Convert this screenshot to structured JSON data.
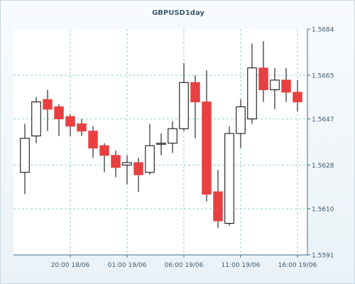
{
  "chart_data": {
    "type": "candlestick",
    "title": "GBPUSD1day",
    "xlabel": "",
    "ylabel": "",
    "ylim": [
      1.5591,
      1.5684
    ],
    "y_ticks": [
      "1.5591",
      "1.5610",
      "1.5628",
      "1.5647",
      "1.5665",
      "1.5684"
    ],
    "x_tick_labels": [
      {
        "label": "20:00 18/06",
        "index": 4
      },
      {
        "label": "01:00 19/06",
        "index": 9
      },
      {
        "label": "06:00 19/06",
        "index": 14
      },
      {
        "label": "11:00 19/06",
        "index": 19
      },
      {
        "label": "16:00 19/06",
        "index": 24
      }
    ],
    "grid": true,
    "colors": {
      "up_fill": "#ffffff",
      "down_fill": "#e84040",
      "grid": "#8ed0d0",
      "axis": "#3a6f8f",
      "label": "#3f5a72"
    },
    "candles": [
      {
        "open": 1.5625,
        "high": 1.5645,
        "low": 1.5616,
        "close": 1.5639
      },
      {
        "open": 1.564,
        "high": 1.5656,
        "low": 1.5637,
        "close": 1.5654
      },
      {
        "open": 1.5655,
        "high": 1.5659,
        "low": 1.5642,
        "close": 1.5651
      },
      {
        "open": 1.5652,
        "high": 1.5653,
        "low": 1.564,
        "close": 1.5647
      },
      {
        "open": 1.5648,
        "high": 1.5649,
        "low": 1.564,
        "close": 1.5644
      },
      {
        "open": 1.5645,
        "high": 1.5647,
        "low": 1.564,
        "close": 1.5642
      },
      {
        "open": 1.5642,
        "high": 1.5644,
        "low": 1.5631,
        "close": 1.5635
      },
      {
        "open": 1.5636,
        "high": 1.5637,
        "low": 1.5625,
        "close": 1.5632
      },
      {
        "open": 1.5632,
        "high": 1.5634,
        "low": 1.5623,
        "close": 1.5627
      },
      {
        "open": 1.5628,
        "high": 1.5632,
        "low": 1.562,
        "close": 1.5629
      },
      {
        "open": 1.5629,
        "high": 1.5631,
        "low": 1.5617,
        "close": 1.5624
      },
      {
        "open": 1.5625,
        "high": 1.5645,
        "low": 1.5624,
        "close": 1.5636
      },
      {
        "open": 1.5637,
        "high": 1.5641,
        "low": 1.5632,
        "close": 1.5637
      },
      {
        "open": 1.5637,
        "high": 1.5646,
        "low": 1.5633,
        "close": 1.5643
      },
      {
        "open": 1.5643,
        "high": 1.567,
        "low": 1.5642,
        "close": 1.5662
      },
      {
        "open": 1.5662,
        "high": 1.5665,
        "low": 1.5639,
        "close": 1.5654
      },
      {
        "open": 1.5654,
        "high": 1.5667,
        "low": 1.5613,
        "close": 1.5616
      },
      {
        "open": 1.5617,
        "high": 1.5626,
        "low": 1.5602,
        "close": 1.5605
      },
      {
        "open": 1.5604,
        "high": 1.5644,
        "low": 1.5603,
        "close": 1.5641
      },
      {
        "open": 1.5641,
        "high": 1.5655,
        "low": 1.5635,
        "close": 1.5652
      },
      {
        "open": 1.5647,
        "high": 1.5678,
        "low": 1.5645,
        "close": 1.5668
      },
      {
        "open": 1.5668,
        "high": 1.5679,
        "low": 1.5654,
        "close": 1.5659
      },
      {
        "open": 1.5659,
        "high": 1.5668,
        "low": 1.5651,
        "close": 1.5663
      },
      {
        "open": 1.5663,
        "high": 1.5668,
        "low": 1.5654,
        "close": 1.5658
      },
      {
        "open": 1.5658,
        "high": 1.5663,
        "low": 1.565,
        "close": 1.5654
      }
    ]
  }
}
